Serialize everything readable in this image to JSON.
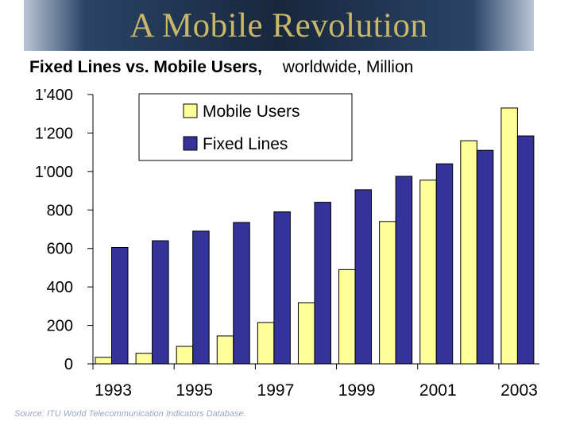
{
  "page": {
    "title": "A Mobile Revolution",
    "subtitle_bold": "Fixed Lines vs. Mobile Users,",
    "subtitle_unit": "worldwide, Million",
    "source": "Source:  ITU World Telecommunication Indicators Database."
  },
  "colors": {
    "mobile": "#ffff99",
    "fixed": "#333399",
    "title_text": "#c9b86a"
  },
  "chart_data": {
    "type": "bar",
    "title": "Fixed Lines vs. Mobile Users, worldwide, Million",
    "xlabel": "",
    "ylabel": "",
    "ylim": [
      0,
      1400
    ],
    "yticks": [
      0,
      200,
      400,
      600,
      800,
      1000,
      1200,
      1400
    ],
    "ytick_labels": [
      "0",
      "200",
      "400",
      "600",
      "800",
      "1'000",
      "1'200",
      "1'400"
    ],
    "categories": [
      "1993",
      "1994",
      "1995",
      "1996",
      "1997",
      "1998",
      "1999",
      "2000",
      "2001",
      "2002",
      "2003"
    ],
    "xtick_labels": [
      "1993",
      "",
      "1995",
      "",
      "1997",
      "",
      "1999",
      "",
      "2001",
      "",
      "2003"
    ],
    "legend_position": "top-right",
    "series": [
      {
        "name": "Mobile Users",
        "color": "#ffff99",
        "values": [
          34,
          55,
          91,
          145,
          215,
          318,
          490,
          740,
          955,
          1160,
          1330
        ]
      },
      {
        "name": "Fixed Lines",
        "color": "#333399",
        "values": [
          605,
          640,
          690,
          735,
          790,
          840,
          905,
          975,
          1040,
          1110,
          1185
        ]
      }
    ]
  }
}
